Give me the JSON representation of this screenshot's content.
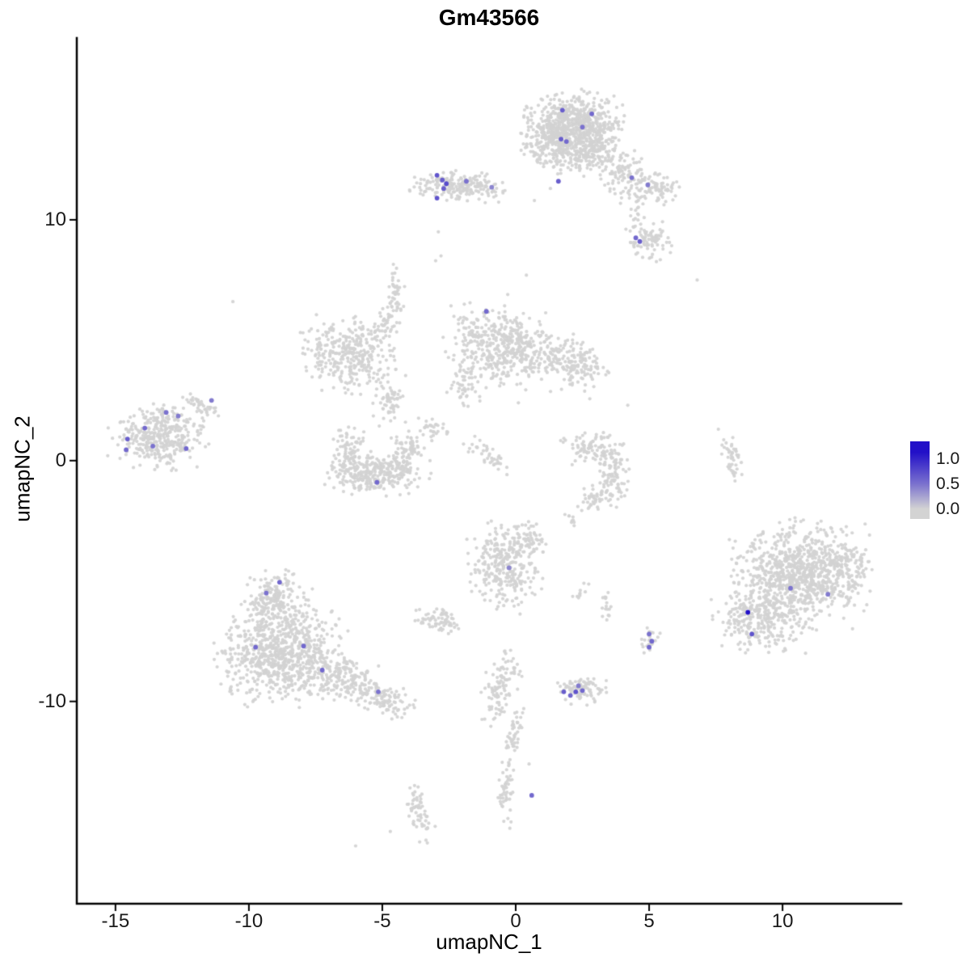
{
  "title": "Gm43566",
  "axes": {
    "x_label": "umapNC_1",
    "y_label": "umapNC_2",
    "x_ticks": {
      "values": [
        -15,
        -10,
        -5,
        0,
        5,
        10
      ],
      "labels": [
        "-15",
        "-10",
        "-5",
        "0",
        "5",
        "10"
      ]
    },
    "y_ticks": {
      "values": [
        -10,
        0,
        10
      ],
      "labels": [
        "-10",
        "0",
        "10"
      ]
    }
  },
  "legend": {
    "labels": [
      "1.0",
      "0.5",
      "0.0"
    ],
    "values": [
      1.0,
      0.5,
      0.0
    ],
    "color_high": "#2210C8",
    "color_low": "#D3D3D3"
  },
  "chart_data": {
    "type": "scatter",
    "title": "Gm43566",
    "xlabel": "umapNC_1",
    "ylabel": "umapNC_2",
    "xlim": [
      -16.45,
      14.45
    ],
    "ylim": [
      -18.4,
      17.55
    ],
    "grid": false,
    "legend_position": "right",
    "point_color_low": "#D3D3D3",
    "point_color_high": "#2210C8",
    "clusters": [
      {
        "x": 2.1,
        "y": 13.9,
        "sx": 0.85,
        "sy": 0.65,
        "n": 650
      },
      {
        "x": 2.9,
        "y": 13.1,
        "sx": 0.5,
        "sy": 0.5,
        "n": 150
      },
      {
        "x": 1.2,
        "y": 13.3,
        "sx": 0.4,
        "sy": 0.5,
        "n": 100
      },
      {
        "x": 2.0,
        "y": 12.6,
        "sx": 0.7,
        "sy": 0.35,
        "n": 90
      },
      {
        "x": 3.9,
        "y": 12.1,
        "sx": 0.4,
        "sy": 0.4,
        "n": 60
      },
      {
        "x": 4.6,
        "y": 11.5,
        "sx": 0.45,
        "sy": 0.4,
        "n": 70
      },
      {
        "x": 5.5,
        "y": 11.3,
        "sx": 0.35,
        "sy": 0.3,
        "n": 45
      },
      {
        "x": -2.3,
        "y": 11.45,
        "sx": 0.75,
        "sy": 0.3,
        "n": 160
      },
      {
        "x": -1.2,
        "y": 11.3,
        "sx": 0.4,
        "sy": 0.25,
        "n": 40
      },
      {
        "x": 5.0,
        "y": 9.1,
        "sx": 0.4,
        "sy": 0.35,
        "n": 80
      },
      {
        "x": 4.6,
        "y": 10.3,
        "sx": 0.2,
        "sy": 0.4,
        "n": 20
      },
      {
        "x": -0.7,
        "y": 4.8,
        "sx": 0.85,
        "sy": 0.8,
        "n": 380
      },
      {
        "x": 0.9,
        "y": 4.3,
        "sx": 0.8,
        "sy": 0.5,
        "n": 160
      },
      {
        "x": 2.4,
        "y": 4.0,
        "sx": 0.5,
        "sy": 0.6,
        "n": 110
      },
      {
        "x": -2.0,
        "y": 3.1,
        "sx": 0.3,
        "sy": 0.4,
        "n": 45
      },
      {
        "x": -6.3,
        "y": 4.4,
        "sx": 0.8,
        "sy": 0.7,
        "n": 320
      },
      {
        "x": -4.9,
        "y": 5.6,
        "sx": 0.3,
        "sy": 0.5,
        "n": 50,
        "angle": -40
      },
      {
        "x": -4.5,
        "y": 6.9,
        "sx": 0.15,
        "sy": 0.55,
        "n": 40
      },
      {
        "x": -4.8,
        "y": 2.5,
        "sx": 0.3,
        "sy": 0.5,
        "n": 60
      },
      {
        "x": -5.2,
        "y": -0.55,
        "sx": 0.85,
        "sy": 0.4,
        "n": 260
      },
      {
        "x": -6.3,
        "y": 0.3,
        "sx": 0.3,
        "sy": 0.5,
        "n": 90
      },
      {
        "x": -4.1,
        "y": 0.3,
        "sx": 0.3,
        "sy": 0.5,
        "n": 90
      },
      {
        "x": -3.2,
        "y": 1.3,
        "sx": 0.3,
        "sy": 0.25,
        "n": 30,
        "angle": -30
      },
      {
        "x": -1.0,
        "y": 0.2,
        "sx": 0.5,
        "sy": 0.15,
        "n": 40,
        "angle": -35
      },
      {
        "x": -13.4,
        "y": 1.0,
        "sx": 0.8,
        "sy": 0.6,
        "n": 380
      },
      {
        "x": -11.8,
        "y": 2.3,
        "sx": 0.4,
        "sy": 0.15,
        "n": 40,
        "angle": -30
      },
      {
        "x": 3.0,
        "y": 0.5,
        "sx": 0.55,
        "sy": 0.3,
        "n": 90
      },
      {
        "x": 3.7,
        "y": -0.6,
        "sx": 0.25,
        "sy": 0.5,
        "n": 80
      },
      {
        "x": 3.1,
        "y": -1.5,
        "sx": 0.4,
        "sy": 0.25,
        "n": 50
      },
      {
        "x": 8.1,
        "y": 0.2,
        "sx": 0.15,
        "sy": 0.55,
        "n": 45,
        "angle": 15
      },
      {
        "x": 10.6,
        "y": -4.7,
        "sx": 1.15,
        "sy": 1.0,
        "n": 850
      },
      {
        "x": 9.1,
        "y": -6.6,
        "sx": 0.75,
        "sy": 0.6,
        "n": 280
      },
      {
        "x": 12.2,
        "y": -4.6,
        "sx": 0.5,
        "sy": 0.6,
        "n": 120
      },
      {
        "x": -0.4,
        "y": -4.4,
        "sx": 0.6,
        "sy": 0.85,
        "n": 300
      },
      {
        "x": 0.6,
        "y": -3.3,
        "sx": 0.3,
        "sy": 0.3,
        "n": 50
      },
      {
        "x": -2.9,
        "y": -6.7,
        "sx": 0.4,
        "sy": 0.28,
        "n": 70
      },
      {
        "x": -8.8,
        "y": -8.0,
        "sx": 1.05,
        "sy": 0.95,
        "n": 800
      },
      {
        "x": -9.0,
        "y": -5.7,
        "sx": 0.6,
        "sy": 0.5,
        "n": 180
      },
      {
        "x": -6.4,
        "y": -9.1,
        "sx": 0.7,
        "sy": 0.45,
        "n": 180,
        "angle": -20
      },
      {
        "x": -4.9,
        "y": -9.9,
        "sx": 0.5,
        "sy": 0.3,
        "n": 90,
        "angle": -20
      },
      {
        "x": 2.4,
        "y": -9.5,
        "sx": 0.45,
        "sy": 0.28,
        "n": 90
      },
      {
        "x": 5.05,
        "y": -7.5,
        "sx": 0.18,
        "sy": 0.3,
        "n": 25
      },
      {
        "x": 3.35,
        "y": -6.1,
        "sx": 0.12,
        "sy": 0.35,
        "n": 16
      },
      {
        "x": -0.6,
        "y": -9.4,
        "sx": 0.3,
        "sy": 0.75,
        "n": 100,
        "angle": -15
      },
      {
        "x": -0.05,
        "y": -11.4,
        "sx": 0.15,
        "sy": 0.6,
        "n": 45,
        "angle": -10
      },
      {
        "x": -0.4,
        "y": -13.9,
        "sx": 0.15,
        "sy": 0.6,
        "n": 45
      },
      {
        "x": -3.6,
        "y": -14.6,
        "sx": 0.22,
        "sy": 0.55,
        "n": 60,
        "angle": 10
      },
      {
        "x": 2.1,
        "y": -2.5,
        "sx": 0.15,
        "sy": 0.2,
        "n": 8
      },
      {
        "x": 2.5,
        "y": -5.5,
        "sx": 0.2,
        "sy": 0.2,
        "n": 10
      }
    ],
    "sparse_points": [
      [
        -10.6,
        6.6
      ],
      [
        6.8,
        7.5
      ],
      [
        -3.0,
        8.3
      ],
      [
        -2.8,
        8.5
      ],
      [
        0.4,
        7.7
      ],
      [
        -0.3,
        6.9
      ],
      [
        -2.9,
        9.5
      ],
      [
        0.7,
        10.8
      ],
      [
        1.3,
        11.3
      ],
      [
        4.2,
        2.3
      ],
      [
        2.0,
        -2.3
      ],
      [
        0.1,
        2.4
      ],
      [
        -4.7,
        -15.4
      ],
      [
        -6.0,
        -16.0
      ],
      [
        0.5,
        -12.6
      ]
    ],
    "highlighted_points": [
      [
        1.75,
        14.55,
        0.6
      ],
      [
        2.85,
        14.4,
        0.55
      ],
      [
        2.5,
        13.85,
        0.5
      ],
      [
        1.7,
        13.35,
        0.6
      ],
      [
        1.9,
        13.25,
        0.55
      ],
      [
        1.6,
        11.6,
        0.6
      ],
      [
        -2.95,
        11.85,
        0.65
      ],
      [
        -2.75,
        11.65,
        0.6
      ],
      [
        -2.6,
        11.5,
        0.7
      ],
      [
        -2.7,
        11.3,
        0.6
      ],
      [
        -1.85,
        11.6,
        0.5
      ],
      [
        -2.95,
        10.9,
        0.65
      ],
      [
        -0.9,
        11.35,
        0.4
      ],
      [
        4.35,
        11.75,
        0.5
      ],
      [
        4.95,
        11.45,
        0.45
      ],
      [
        4.5,
        9.25,
        0.55
      ],
      [
        4.65,
        9.1,
        0.6
      ],
      [
        -1.1,
        6.2,
        0.55
      ],
      [
        -13.1,
        2.0,
        0.5
      ],
      [
        -12.65,
        1.85,
        0.45
      ],
      [
        -13.9,
        1.35,
        0.55
      ],
      [
        -14.55,
        0.9,
        0.6
      ],
      [
        -14.6,
        0.45,
        0.55
      ],
      [
        -13.6,
        0.6,
        0.5
      ],
      [
        -12.35,
        0.5,
        0.55
      ],
      [
        -11.4,
        2.5,
        0.45
      ],
      [
        -5.2,
        -0.9,
        0.55
      ],
      [
        -0.25,
        -4.45,
        0.4
      ],
      [
        -8.85,
        -5.05,
        0.55
      ],
      [
        -9.35,
        -5.5,
        0.5
      ],
      [
        -9.75,
        -7.75,
        0.55
      ],
      [
        -7.95,
        -7.7,
        0.55
      ],
      [
        -7.25,
        -8.7,
        0.55
      ],
      [
        -5.15,
        -9.6,
        0.5
      ],
      [
        1.8,
        -9.6,
        0.6
      ],
      [
        2.05,
        -9.75,
        0.55
      ],
      [
        2.25,
        -9.6,
        0.65
      ],
      [
        2.5,
        -9.55,
        0.55
      ],
      [
        2.35,
        -9.35,
        0.45
      ],
      [
        5.0,
        -7.2,
        0.5
      ],
      [
        5.1,
        -7.5,
        0.55
      ],
      [
        5.0,
        -7.75,
        0.55
      ],
      [
        8.7,
        -6.3,
        1.0
      ],
      [
        8.85,
        -7.2,
        0.65
      ],
      [
        10.3,
        -5.3,
        0.5
      ],
      [
        11.7,
        -5.55,
        0.45
      ],
      [
        0.6,
        -13.9,
        0.55
      ]
    ]
  }
}
